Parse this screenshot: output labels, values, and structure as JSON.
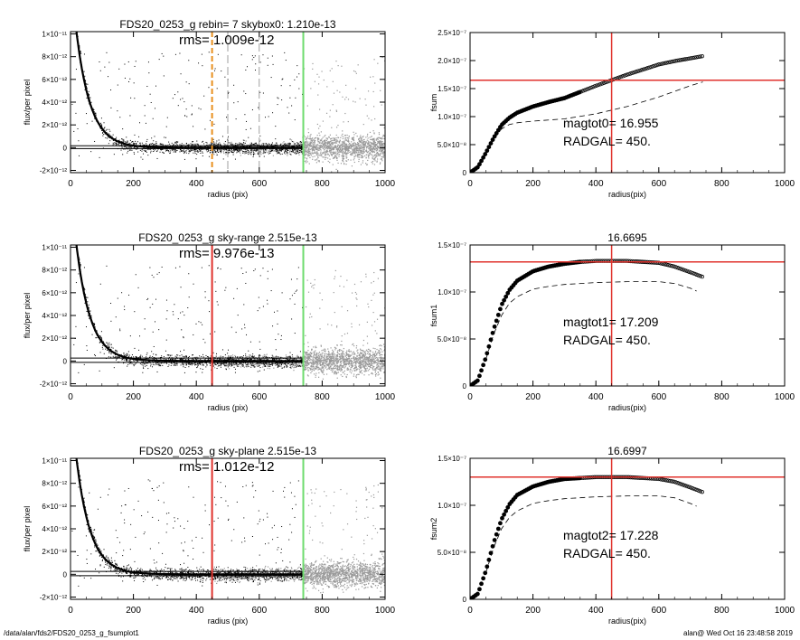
{
  "footer": {
    "path": "/data/alan/fds2/FDS20_0253_g_fsumplot1",
    "stamp": "alan@  Wed Oct 16 23:48:58 2019"
  },
  "colors": {
    "points_dark": "#000000",
    "points_light": "#999999",
    "orange_line": "#e8901e",
    "red_line": "#e0322c",
    "green_line": "#6fdc6f",
    "curve": "#000000"
  },
  "chart_data": [
    {
      "type": "scatter",
      "title": "FDS20_0253_g rebin= 7    skybox0:  1.210e-13",
      "annotation": "rms= 1.009e-12",
      "xlabel": "radius (pix)",
      "ylabel": "flux/per pixel",
      "xlim": [
        0,
        1000
      ],
      "ylim": [
        -2.2e-12,
        1.02e-11
      ],
      "xticks": [
        "0",
        "200",
        "400",
        "600",
        "800",
        "1000"
      ],
      "yticks": [
        {
          "value": -2e-12,
          "label": "-2×10⁻¹²"
        },
        {
          "value": 0,
          "label": "0"
        },
        {
          "value": 2e-12,
          "label": "2×10⁻¹²"
        },
        {
          "value": 4e-12,
          "label": "4×10⁻¹²"
        },
        {
          "value": 6e-12,
          "label": "6×10⁻¹²"
        },
        {
          "value": 8e-12,
          "label": "8×10⁻¹²"
        },
        {
          "value": 1e-11,
          "label": "1×10⁻¹¹"
        }
      ],
      "profile_model": {
        "amplitude": 1.55e-11,
        "scale_radius": 45,
        "xmax": 740
      },
      "sky_band": [
        1.6e-13,
        -8e-14
      ],
      "vlines": [
        {
          "x": 450,
          "color": "orange",
          "style": "dashed"
        },
        {
          "x": 500,
          "color": "gray",
          "style": "dashed"
        },
        {
          "x": 600,
          "color": "gray",
          "style": "dashed"
        },
        {
          "x": 740,
          "color": "green",
          "style": "solid"
        }
      ]
    },
    {
      "type": "line",
      "title": "",
      "xlabel": "radius(pix)",
      "ylabel": "fsum",
      "xlim": [
        0,
        1000
      ],
      "ylim": [
        0,
        2.5e-07
      ],
      "xticks": [
        "0",
        "200",
        "400",
        "600",
        "800",
        "1000"
      ],
      "yticks": [
        {
          "value": 0,
          "label": "0"
        },
        {
          "value": 5e-08,
          "label": "5.0×10⁻⁸"
        },
        {
          "value": 1e-07,
          "label": "1.0×10⁻⁷"
        },
        {
          "value": 1.5e-07,
          "label": "1.5×10⁻⁷"
        },
        {
          "value": 2e-07,
          "label": "2.0×10⁻⁷"
        },
        {
          "value": 2.5e-07,
          "label": "2.5×10⁻⁷"
        }
      ],
      "annotations": [
        "magtot0=  16.955",
        "RADGAL=    450."
      ],
      "series": [
        {
          "values": [
            [
              0,
              0
            ],
            [
              25,
              1e-08
            ],
            [
              50,
              3.5e-08
            ],
            [
              75,
              6.2e-08
            ],
            [
              100,
              8.5e-08
            ],
            [
              125,
              9.8e-08
            ],
            [
              150,
              1.07e-07
            ],
            [
              200,
              1.18e-07
            ],
            [
              250,
              1.26e-07
            ],
            [
              300,
              1.33e-07
            ],
            [
              350,
              1.44e-07
            ],
            [
              400,
              1.55e-07
            ],
            [
              450,
              1.65e-07
            ],
            [
              500,
              1.75e-07
            ],
            [
              550,
              1.84e-07
            ],
            [
              600,
              1.93e-07
            ],
            [
              650,
              1.99e-07
            ],
            [
              700,
              2.04e-07
            ],
            [
              740,
              2.08e-07
            ]
          ]
        },
        {
          "values": [
            [
              50,
              3.5e-08
            ],
            [
              75,
              6e-08
            ],
            [
              100,
              7.8e-08
            ],
            [
              125,
              8.6e-08
            ],
            [
              150,
              8.9e-08
            ],
            [
              200,
              9.2e-08
            ],
            [
              300,
              9.6e-08
            ],
            [
              400,
              1.05e-07
            ],
            [
              500,
              1.18e-07
            ],
            [
              600,
              1.35e-07
            ],
            [
              700,
              1.55e-07
            ],
            [
              740,
              1.62e-07
            ]
          ]
        }
      ],
      "hline": 1.65e-07,
      "vline": 450
    },
    {
      "type": "scatter",
      "title": "FDS20_0253_g sky-range  2.515e-13",
      "annotation": "rms= 9.976e-13",
      "xlabel": "radius (pix)",
      "ylabel": "flux/per pixel",
      "xlim": [
        0,
        1000
      ],
      "ylim": [
        -2.2e-12,
        1.02e-11
      ],
      "xticks": [
        "0",
        "200",
        "400",
        "600",
        "800",
        "1000"
      ],
      "yticks": [
        {
          "value": -2e-12,
          "label": "-2×10⁻¹²"
        },
        {
          "value": 0,
          "label": "0"
        },
        {
          "value": 2e-12,
          "label": "2×10⁻¹²"
        },
        {
          "value": 4e-12,
          "label": "4×10⁻¹²"
        },
        {
          "value": 6e-12,
          "label": "6×10⁻¹²"
        },
        {
          "value": 8e-12,
          "label": "8×10⁻¹²"
        },
        {
          "value": 1e-11,
          "label": "1×10⁻¹¹"
        }
      ],
      "profile_model": {
        "amplitude": 1.55e-11,
        "scale_radius": 45,
        "xmax": 740
      },
      "sky_band": [
        2.5e-13,
        -1.2e-13
      ],
      "vlines": [
        {
          "x": 450,
          "color": "red",
          "style": "solid"
        },
        {
          "x": 740,
          "color": "green",
          "style": "solid"
        }
      ]
    },
    {
      "type": "line",
      "title": "16.6695",
      "xlabel": "radius(pix)",
      "ylabel": "fsum1",
      "xlim": [
        0,
        1000
      ],
      "ylim": [
        0,
        1.5e-07
      ],
      "xticks": [
        "0",
        "200",
        "400",
        "600",
        "800",
        "1000"
      ],
      "yticks": [
        {
          "value": 0,
          "label": "0"
        },
        {
          "value": 5e-08,
          "label": "5.0×10⁻⁸"
        },
        {
          "value": 1e-07,
          "label": "1.0×10⁻⁷"
        },
        {
          "value": 1.5e-07,
          "label": "1.5×10⁻⁷"
        }
      ],
      "annotations": [
        "magtot1=  17.209",
        "RADGAL=    450."
      ],
      "series": [
        {
          "values": [
            [
              0,
              0
            ],
            [
              25,
              6e-09
            ],
            [
              50,
              3e-08
            ],
            [
              75,
              6e-08
            ],
            [
              100,
              8.6e-08
            ],
            [
              125,
              1.02e-07
            ],
            [
              150,
              1.12e-07
            ],
            [
              200,
              1.22e-07
            ],
            [
              250,
              1.27e-07
            ],
            [
              300,
              1.3e-07
            ],
            [
              350,
              1.32e-07
            ],
            [
              400,
              1.33e-07
            ],
            [
              450,
              1.33e-07
            ],
            [
              500,
              1.33e-07
            ],
            [
              550,
              1.32e-07
            ],
            [
              600,
              1.31e-07
            ],
            [
              650,
              1.27e-07
            ],
            [
              700,
              1.21e-07
            ],
            [
              740,
              1.16e-07
            ]
          ]
        },
        {
          "values": [
            [
              50,
              2.8e-08
            ],
            [
              75,
              5.5e-08
            ],
            [
              100,
              7.5e-08
            ],
            [
              125,
              8.8e-08
            ],
            [
              150,
              9.5e-08
            ],
            [
              200,
              1.03e-07
            ],
            [
              250,
              1.06e-07
            ],
            [
              300,
              1.08e-07
            ],
            [
              400,
              1.1e-07
            ],
            [
              500,
              1.11e-07
            ],
            [
              600,
              1.11e-07
            ],
            [
              650,
              1.09e-07
            ],
            [
              700,
              1.04e-07
            ],
            [
              720,
              1.01e-07
            ]
          ]
        }
      ],
      "hline": 1.32e-07,
      "vline": 450
    },
    {
      "type": "scatter",
      "title": "FDS20_0253_g sky-plane  2.515e-13",
      "annotation": "rms= 1.012e-12",
      "xlabel": "radius (pix)",
      "ylabel": "flux/per pixel",
      "xlim": [
        0,
        1000
      ],
      "ylim": [
        -2.2e-12,
        1.02e-11
      ],
      "xticks": [
        "0",
        "200",
        "400",
        "600",
        "800",
        "1000"
      ],
      "yticks": [
        {
          "value": -2e-12,
          "label": "-2×10⁻¹²"
        },
        {
          "value": 0,
          "label": "0"
        },
        {
          "value": 2e-12,
          "label": "2×10⁻¹²"
        },
        {
          "value": 4e-12,
          "label": "4×10⁻¹²"
        },
        {
          "value": 6e-12,
          "label": "6×10⁻¹²"
        },
        {
          "value": 8e-12,
          "label": "8×10⁻¹²"
        },
        {
          "value": 1e-11,
          "label": "1×10⁻¹¹"
        }
      ],
      "profile_model": {
        "amplitude": 1.55e-11,
        "scale_radius": 45,
        "xmax": 740
      },
      "sky_band": [
        2.5e-13,
        -1.2e-13
      ],
      "vlines": [
        {
          "x": 450,
          "color": "red",
          "style": "solid"
        },
        {
          "x": 740,
          "color": "green",
          "style": "solid"
        }
      ]
    },
    {
      "type": "line",
      "title": "16.6997",
      "xlabel": "radius(pix)",
      "ylabel": "fsum2",
      "xlim": [
        0,
        1000
      ],
      "ylim": [
        0,
        1.5e-07
      ],
      "xticks": [
        "0",
        "200",
        "400",
        "600",
        "800",
        "1000"
      ],
      "yticks": [
        {
          "value": 0,
          "label": "0"
        },
        {
          "value": 5e-08,
          "label": "5.0×10⁻⁸"
        },
        {
          "value": 1e-07,
          "label": "1.0×10⁻⁷"
        },
        {
          "value": 1.5e-07,
          "label": "1.5×10⁻⁷"
        }
      ],
      "annotations": [
        "magtot2=  17.228",
        "RADGAL=    450."
      ],
      "series": [
        {
          "values": [
            [
              0,
              0
            ],
            [
              25,
              6e-09
            ],
            [
              50,
              3e-08
            ],
            [
              75,
              6e-08
            ],
            [
              100,
              8.5e-08
            ],
            [
              125,
              1.01e-07
            ],
            [
              150,
              1.11e-07
            ],
            [
              200,
              1.2e-07
            ],
            [
              250,
              1.25e-07
            ],
            [
              300,
              1.28e-07
            ],
            [
              350,
              1.29e-07
            ],
            [
              400,
              1.3e-07
            ],
            [
              450,
              1.3e-07
            ],
            [
              500,
              1.3e-07
            ],
            [
              550,
              1.29e-07
            ],
            [
              600,
              1.28e-07
            ],
            [
              650,
              1.25e-07
            ],
            [
              700,
              1.19e-07
            ],
            [
              740,
              1.14e-07
            ]
          ]
        },
        {
          "values": [
            [
              50,
              2.8e-08
            ],
            [
              75,
              5.5e-08
            ],
            [
              100,
              7.5e-08
            ],
            [
              125,
              8.7e-08
            ],
            [
              150,
              9.4e-08
            ],
            [
              200,
              1.02e-07
            ],
            [
              250,
              1.05e-07
            ],
            [
              300,
              1.07e-07
            ],
            [
              400,
              1.09e-07
            ],
            [
              500,
              1.1e-07
            ],
            [
              600,
              1.1e-07
            ],
            [
              650,
              1.08e-07
            ],
            [
              700,
              1.02e-07
            ],
            [
              720,
              9.9e-08
            ]
          ]
        }
      ],
      "hline": 1.3e-07,
      "vline": 450
    }
  ]
}
